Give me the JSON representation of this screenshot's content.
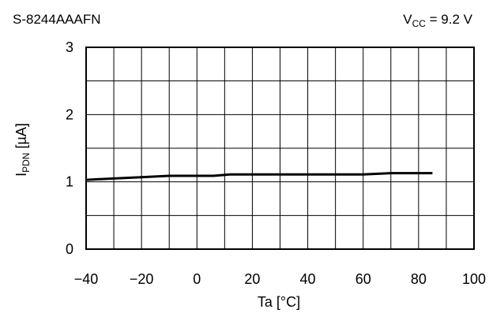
{
  "chart_data": {
    "type": "line",
    "header_left": "S-8244AAAFN",
    "header_right": {
      "symbol": "V",
      "subscript": "CC",
      "suffix": " = 9.2 V"
    },
    "xlabel": "Ta [°C]",
    "ylabel": {
      "symbol": "I",
      "subscript": "PDN",
      "suffix": " [µA]"
    },
    "xlim": [
      -40,
      100
    ],
    "ylim": [
      0,
      3
    ],
    "x_ticks": [
      -40,
      -20,
      0,
      20,
      40,
      60,
      80,
      100
    ],
    "x_tick_labels": [
      "−40",
      "−20",
      "0",
      "20",
      "40",
      "60",
      "80",
      "100"
    ],
    "y_ticks": [
      0,
      1,
      2,
      3
    ],
    "y_tick_labels": [
      "0",
      "1",
      "2",
      "3"
    ],
    "x_grid_step": 10,
    "y_grid_step": 0.5,
    "grid": true,
    "series": [
      {
        "x": [
          -40,
          -30,
          -20,
          -10,
          0,
          6,
          12,
          20,
          40,
          60,
          70,
          80,
          85
        ],
        "y": [
          1.03,
          1.05,
          1.07,
          1.09,
          1.09,
          1.09,
          1.11,
          1.11,
          1.11,
          1.11,
          1.13,
          1.13,
          1.13
        ]
      }
    ]
  }
}
